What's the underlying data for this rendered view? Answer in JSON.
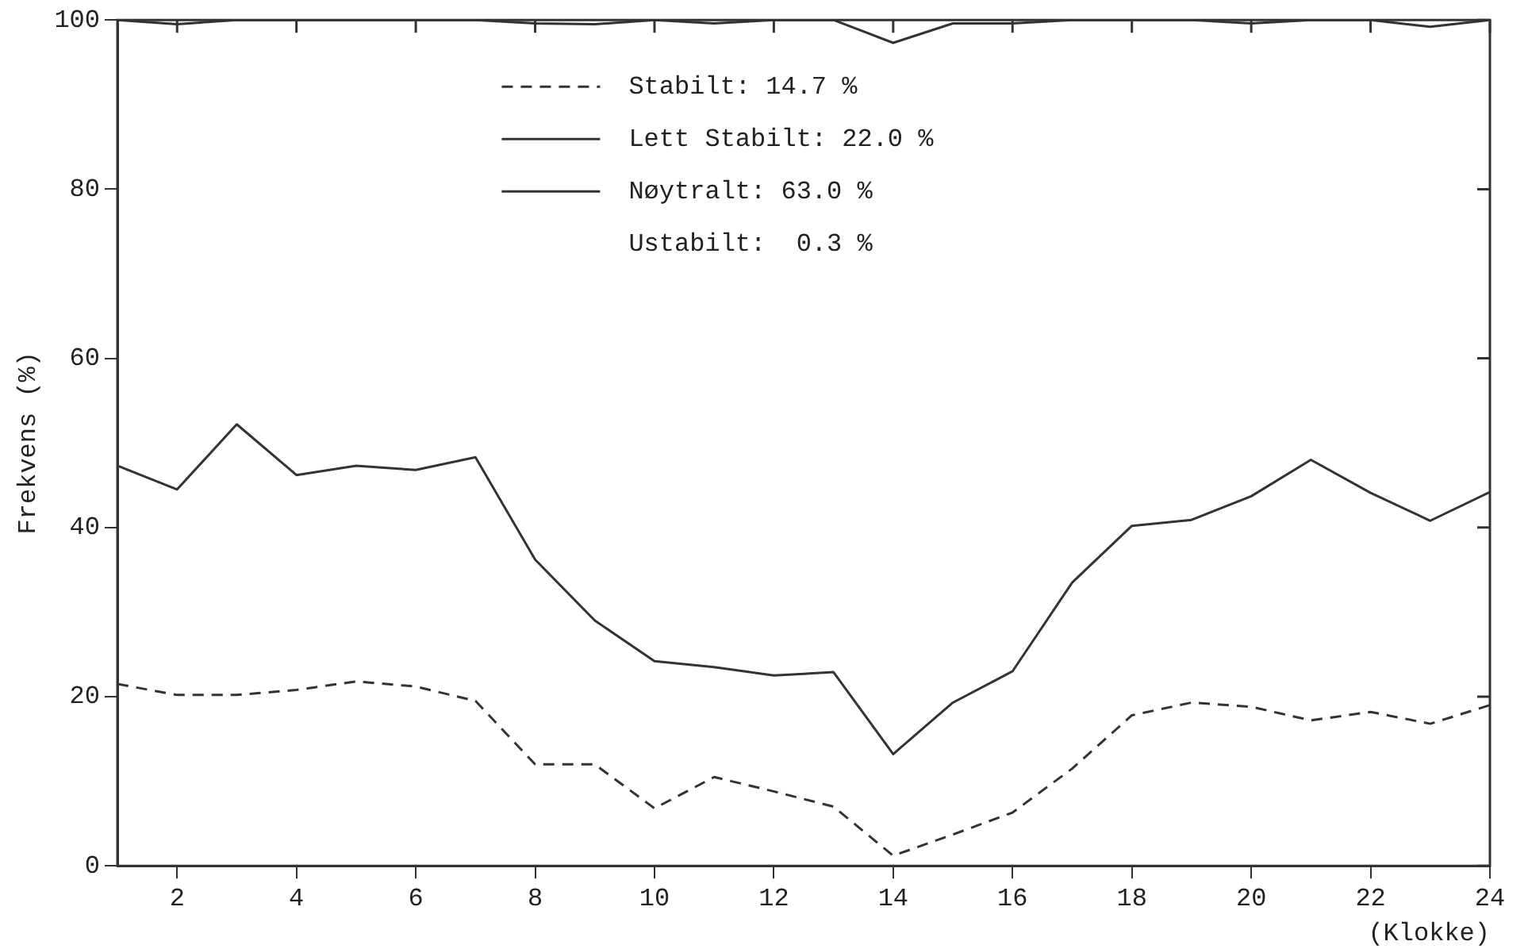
{
  "chart_data": {
    "type": "line",
    "xlabel": "(Klokke)",
    "ylabel": "Frekvens (%)",
    "x": [
      1,
      2,
      3,
      4,
      5,
      6,
      7,
      8,
      9,
      10,
      11,
      12,
      13,
      14,
      15,
      16,
      17,
      18,
      19,
      20,
      21,
      22,
      23,
      24
    ],
    "series": [
      {
        "name": "Stabilt: 14.7 %",
        "color": "#333333",
        "line_style": "dashed",
        "values": [
          21.5,
          20.2,
          20.2,
          20.8,
          21.8,
          21.2,
          19.5,
          12,
          12,
          6.8,
          10.5,
          8.8,
          7,
          1.2,
          3.7,
          6.3,
          11.5,
          17.8,
          19.3,
          18.8,
          17.2,
          18.2,
          16.8,
          19
        ]
      },
      {
        "name": "Lett Stabilt: 22.0 %",
        "color": "#333333",
        "line_style": "solid",
        "values": [
          47.3,
          44.5,
          52.2,
          46.2,
          47.3,
          46.8,
          48.3,
          36.2,
          29,
          24.2,
          23.5,
          22.5,
          22.9,
          13.2,
          19.3,
          23,
          33.5,
          40.2,
          40.9,
          43.7,
          48,
          44.1,
          40.8,
          44.2
        ]
      },
      {
        "name": "Nøytralt: 63.0 %",
        "color": "#333333",
        "line_style": "solid",
        "values": [
          100,
          99.5,
          100,
          100,
          100,
          100,
          100,
          99.6,
          99.5,
          100,
          99.6,
          100,
          100,
          97.3,
          99.6,
          99.6,
          100,
          100,
          100,
          99.6,
          100,
          100,
          99.2,
          100
        ]
      }
    ],
    "annotations": [
      "Ustabilt:  0.3 %"
    ],
    "xlim": [
      1,
      24
    ],
    "xticks": [
      2,
      4,
      6,
      8,
      10,
      12,
      14,
      16,
      18,
      20,
      22,
      24
    ],
    "ylim": [
      0,
      100
    ],
    "yticks": [
      0,
      20,
      40,
      60,
      80,
      100
    ],
    "grid": false,
    "legend": "top",
    "marker": "none"
  }
}
